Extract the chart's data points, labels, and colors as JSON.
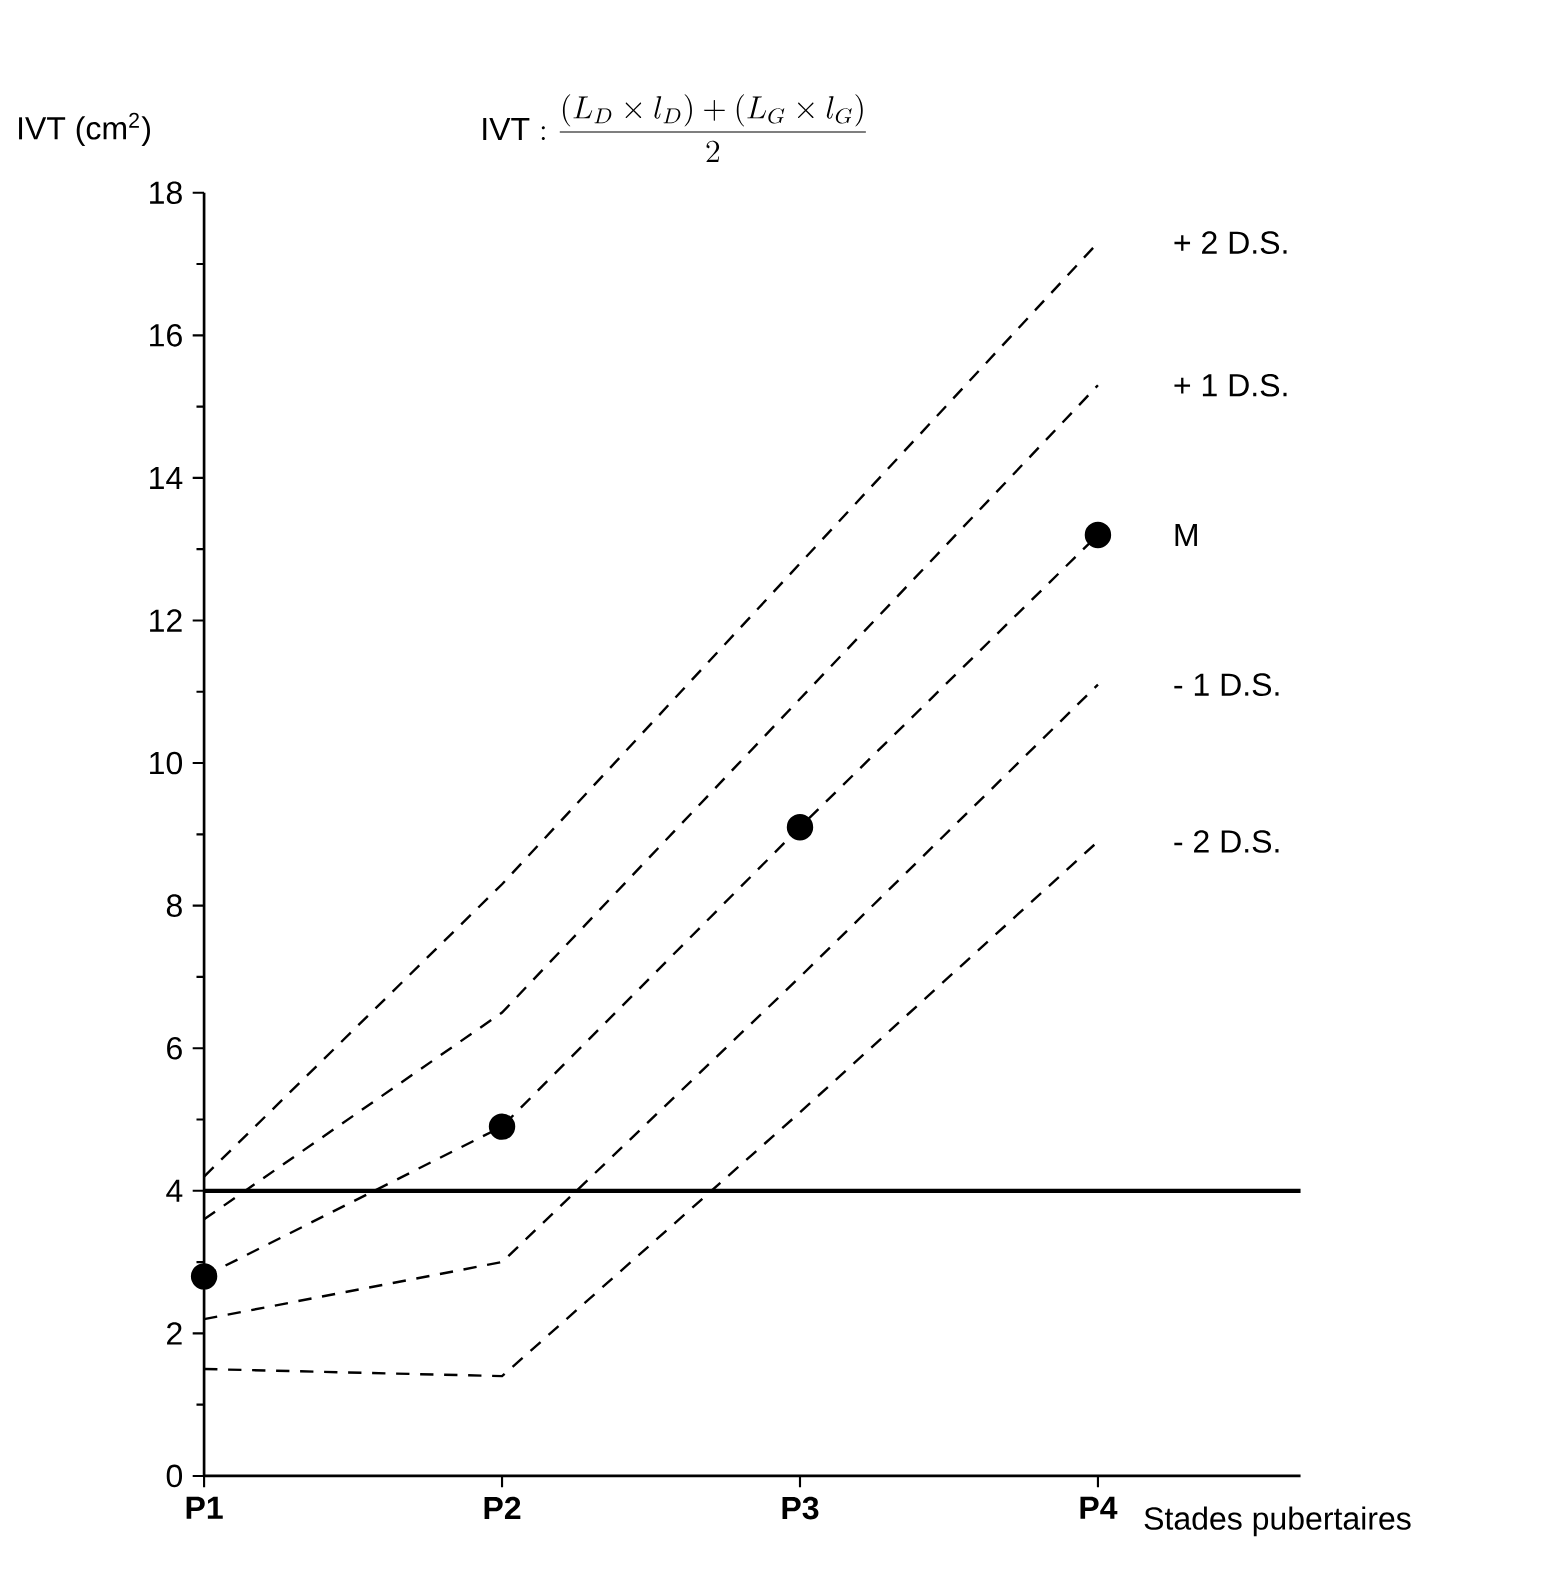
{
  "chart_data": {
    "type": "line",
    "title": "\\mathrm{IVT} : \\frac{(L_{D} \\times l_{D}) + (L_{G} \\times l_{G})}{2}",
    "ylabel": "IVT (cm$^{2}$)",
    "xlabel": "Stades pubertaires",
    "categories": [
      "P1",
      "P2",
      "P3",
      "P4"
    ],
    "ylim": [
      0,
      18
    ],
    "yticks": [
      0,
      2,
      4,
      6,
      8,
      10,
      12,
      14,
      16,
      18
    ],
    "grid": false,
    "legend": false,
    "line_style": "dashed",
    "series": [
      {
        "name": "+ 2 D.S.",
        "color": "#000000",
        "values": [
          4.2,
          8.3,
          12.8,
          17.3
        ]
      },
      {
        "name": "+ 1 D.S.",
        "color": "#000000",
        "values": [
          3.6,
          6.5,
          10.9,
          15.3
        ]
      },
      {
        "name": "M",
        "color": "#000000",
        "marker": "circle",
        "values": [
          2.8,
          4.9,
          9.1,
          13.2
        ]
      },
      {
        "name": "- 1 D.S.",
        "color": "#000000",
        "values": [
          2.2,
          3.0,
          7.0,
          11.1
        ]
      },
      {
        "name": "- 2 D.S.",
        "color": "#000000",
        "values": [
          1.5,
          1.4,
          5.1,
          8.9
        ]
      }
    ],
    "ref_lines": [
      {
        "axis": "y",
        "value": 4,
        "color": "#000000",
        "line_style": "solid"
      }
    ]
  }
}
